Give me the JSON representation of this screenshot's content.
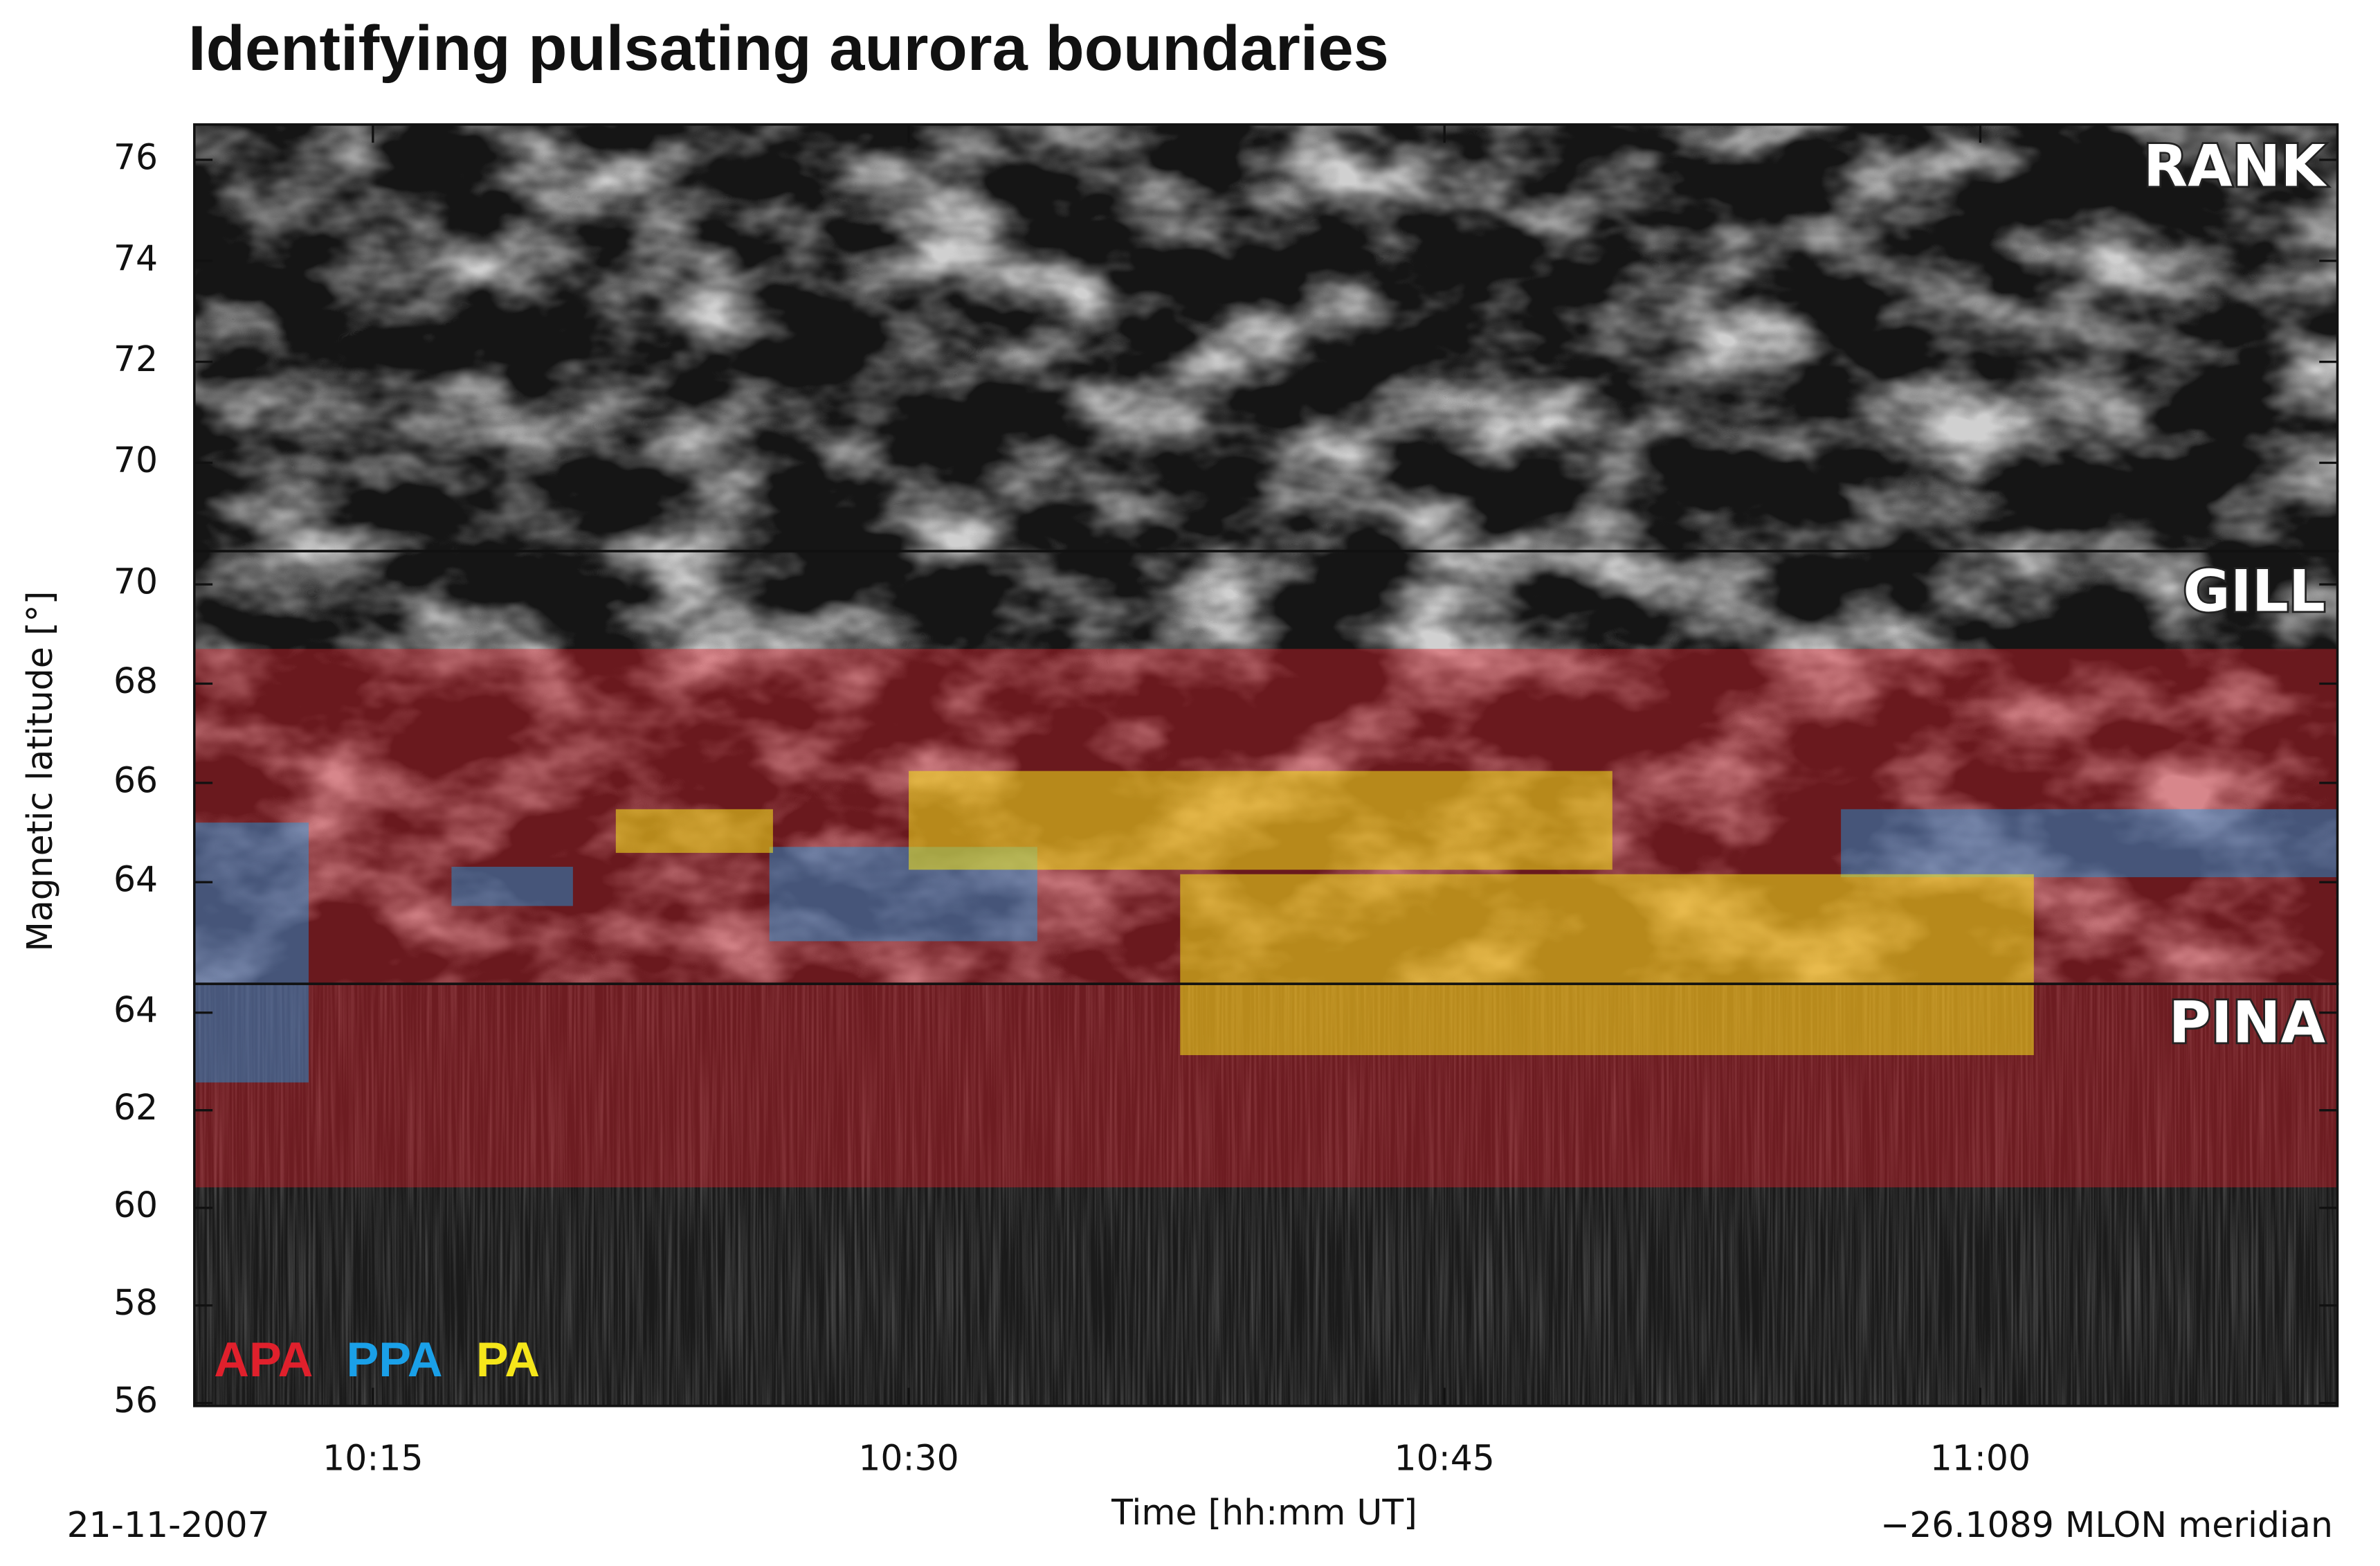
{
  "chart_data": {
    "type": "keogram",
    "title": "Identifying pulsating aurora boundaries",
    "y_label": "Magnetic latitude [°]",
    "x_label": "Time [hh:mm UT]",
    "date": "21-11-2007",
    "meridian": "−26.1089 MLON meridian",
    "xlim": [
      610,
      670
    ],
    "xticks": [
      {
        "value": 615,
        "label": "10:15"
      },
      {
        "value": 630,
        "label": "10:30"
      },
      {
        "value": 645,
        "label": "10:45"
      },
      {
        "value": 660,
        "label": "11:00"
      }
    ],
    "panels": [
      {
        "station": "RANK",
        "ylim": [
          68.25,
          76.7
        ],
        "yticks": [
          70,
          72,
          74,
          76
        ]
      },
      {
        "station": "GILL",
        "ylim": [
          61.95,
          70.67
        ],
        "yticks": [
          64,
          66,
          68,
          70
        ]
      },
      {
        "station": "PINA",
        "ylim": [
          55.94,
          64.59
        ],
        "yticks": [
          56,
          58,
          60,
          62,
          64
        ]
      }
    ],
    "series": [
      {
        "name": "APA",
        "color": "#e0202c",
        "regions": [
          [],
          [
            {
              "time": [
                610,
                670
              ],
              "lat": [
                61.95,
                68.7
              ]
            }
          ],
          [
            {
              "time": [
                610,
                670
              ],
              "lat": [
                60.42,
                64.59
              ]
            }
          ]
        ]
      },
      {
        "name": "PPA",
        "color": "#1aa0e8",
        "regions": [
          [],
          [
            {
              "time": [
                610,
                613.2
              ],
              "lat": [
                61.95,
                65.2
              ]
            },
            {
              "time": [
                617.2,
                620.6
              ],
              "lat": [
                63.52,
                64.31
              ]
            },
            {
              "time": [
                626.1,
                633.6
              ],
              "lat": [
                62.81,
                64.71
              ]
            },
            {
              "time": [
                656.1,
                670
              ],
              "lat": [
                64.1,
                65.47
              ]
            }
          ],
          [
            {
              "time": [
                610,
                613.2
              ],
              "lat": [
                62.57,
                64.59
              ]
            }
          ]
        ]
      },
      {
        "name": "PA",
        "color": "#f5e61a",
        "regions": [
          [],
          [
            {
              "time": [
                621.8,
                626.2
              ],
              "lat": [
                64.59,
                65.47
              ]
            },
            {
              "time": [
                630.0,
                649.7
              ],
              "lat": [
                64.25,
                66.24
              ]
            },
            {
              "time": [
                637.6,
                661.5
              ],
              "lat": [
                61.95,
                64.16
              ]
            }
          ],
          [
            {
              "time": [
                637.6,
                661.5
              ],
              "lat": [
                63.13,
                64.59
              ]
            }
          ]
        ]
      }
    ]
  }
}
